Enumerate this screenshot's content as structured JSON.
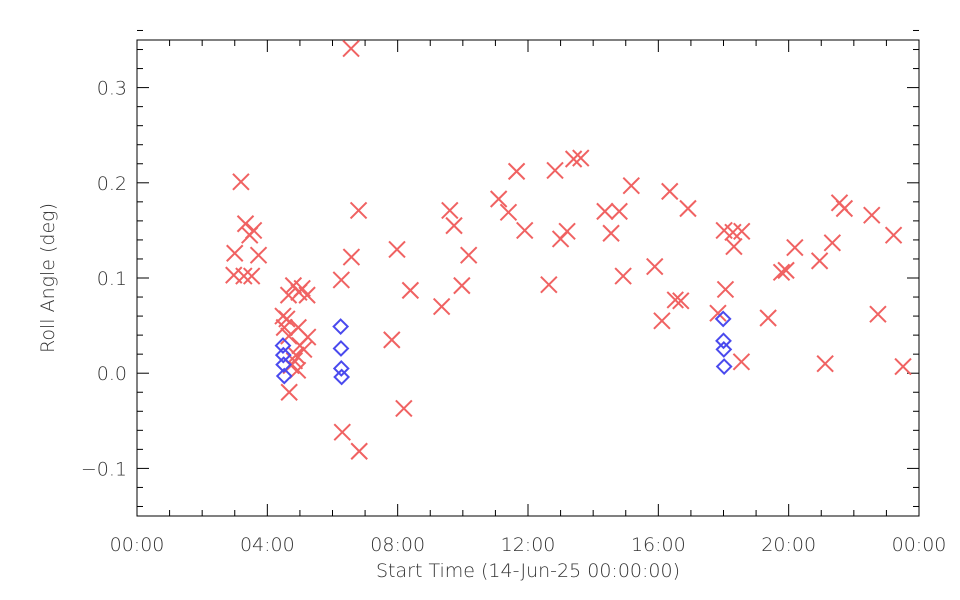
{
  "chart_data": {
    "type": "scatter",
    "xlabel": "Start Time (14-Jun-25 00:00:00)",
    "ylabel": "Roll Angle (deg)",
    "xlim": [
      0,
      24
    ],
    "ylim": [
      -0.15,
      0.35
    ],
    "x_ticks": [
      {
        "value": 0,
        "label": "00:00"
      },
      {
        "value": 4,
        "label": "04:00"
      },
      {
        "value": 8,
        "label": "08:00"
      },
      {
        "value": 12,
        "label": "12:00"
      },
      {
        "value": 16,
        "label": "16:00"
      },
      {
        "value": 20,
        "label": "20:00"
      },
      {
        "value": 24,
        "label": "00:00"
      }
    ],
    "y_ticks": [
      {
        "value": -0.1,
        "label": "−0.1"
      },
      {
        "value": 0.0,
        "label": "0.0"
      },
      {
        "value": 0.1,
        "label": "0.1"
      },
      {
        "value": 0.2,
        "label": "0.2"
      },
      {
        "value": 0.3,
        "label": "0.3"
      }
    ],
    "grid": false,
    "series": [
      {
        "marker": "x",
        "color": "#f06262",
        "points": [
          [
            2.97,
            0.103
          ],
          [
            3.0,
            0.126
          ],
          [
            3.19,
            0.201
          ],
          [
            3.28,
            0.102
          ],
          [
            3.33,
            0.157
          ],
          [
            3.46,
            0.145
          ],
          [
            3.52,
            0.102
          ],
          [
            3.58,
            0.15
          ],
          [
            3.73,
            0.124
          ],
          [
            4.48,
            0.06
          ],
          [
            4.52,
            0.048
          ],
          [
            4.6,
            0.057
          ],
          [
            4.65,
            0.082
          ],
          [
            4.66,
            0.039
          ],
          [
            4.67,
            -0.02
          ],
          [
            4.73,
            0.008
          ],
          [
            4.8,
            0.092
          ],
          [
            4.83,
            0.013
          ],
          [
            4.88,
            0.019
          ],
          [
            4.93,
            0.003
          ],
          [
            4.95,
            0.048
          ],
          [
            4.97,
            0.085
          ],
          [
            5.0,
            0.029
          ],
          [
            5.07,
            0.089
          ],
          [
            5.12,
            0.025
          ],
          [
            5.22,
            0.082
          ],
          [
            5.24,
            0.038
          ],
          [
            6.27,
            0.098
          ],
          [
            6.3,
            -0.062
          ],
          [
            6.57,
            0.341
          ],
          [
            6.58,
            0.122
          ],
          [
            6.8,
            0.171
          ],
          [
            6.82,
            -0.082
          ],
          [
            7.82,
            0.035
          ],
          [
            7.98,
            0.13
          ],
          [
            8.19,
            -0.037
          ],
          [
            8.39,
            0.087
          ],
          [
            9.35,
            0.07
          ],
          [
            9.6,
            0.171
          ],
          [
            9.73,
            0.155
          ],
          [
            9.97,
            0.092
          ],
          [
            10.18,
            0.124
          ],
          [
            11.1,
            0.183
          ],
          [
            11.4,
            0.169
          ],
          [
            11.65,
            0.212
          ],
          [
            11.9,
            0.15
          ],
          [
            12.64,
            0.093
          ],
          [
            12.83,
            0.213
          ],
          [
            13.0,
            0.141
          ],
          [
            13.2,
            0.149
          ],
          [
            13.4,
            0.225
          ],
          [
            13.62,
            0.226
          ],
          [
            14.36,
            0.17
          ],
          [
            14.55,
            0.147
          ],
          [
            14.8,
            0.17
          ],
          [
            14.92,
            0.102
          ],
          [
            15.17,
            0.197
          ],
          [
            15.89,
            0.112
          ],
          [
            16.11,
            0.055
          ],
          [
            16.35,
            0.191
          ],
          [
            16.52,
            0.077
          ],
          [
            16.69,
            0.076
          ],
          [
            16.91,
            0.173
          ],
          [
            17.83,
            0.063
          ],
          [
            18.02,
            0.15
          ],
          [
            18.06,
            0.088
          ],
          [
            18.29,
            0.148
          ],
          [
            18.32,
            0.133
          ],
          [
            18.55,
            0.012
          ],
          [
            18.56,
            0.149
          ],
          [
            19.37,
            0.058
          ],
          [
            19.78,
            0.106
          ],
          [
            19.92,
            0.108
          ],
          [
            20.19,
            0.132
          ],
          [
            20.95,
            0.118
          ],
          [
            21.12,
            0.01
          ],
          [
            21.34,
            0.137
          ],
          [
            21.56,
            0.179
          ],
          [
            21.71,
            0.173
          ],
          [
            22.55,
            0.166
          ],
          [
            22.74,
            0.062
          ],
          [
            23.22,
            0.145
          ],
          [
            23.51,
            0.007
          ]
        ]
      },
      {
        "marker": "diamond",
        "color": "#4a4aee",
        "points": [
          [
            4.48,
            0.029
          ],
          [
            4.49,
            0.019
          ],
          [
            4.5,
            0.009
          ],
          [
            4.52,
            -0.003
          ],
          [
            6.25,
            0.049
          ],
          [
            6.26,
            0.026
          ],
          [
            6.27,
            0.005
          ],
          [
            6.28,
            -0.004
          ],
          [
            17.99,
            0.057
          ],
          [
            18.0,
            0.034
          ],
          [
            18.01,
            0.025
          ],
          [
            18.02,
            0.007
          ]
        ]
      }
    ]
  }
}
